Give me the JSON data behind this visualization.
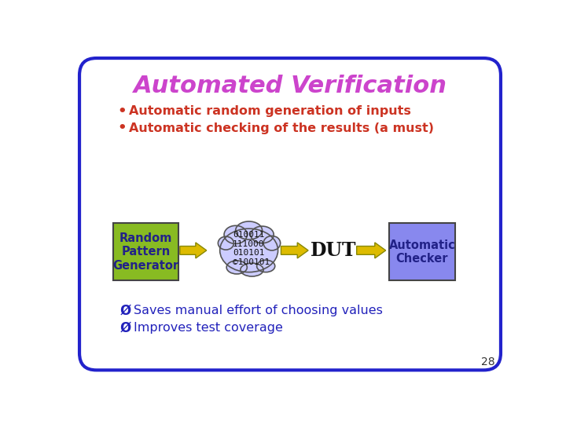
{
  "title": "Automated Verification",
  "title_color": "#cc44cc",
  "bullet_color": "#cc3322",
  "bullet_points": [
    "Automatic random generation of inputs",
    "Automatic checking of the results (a must)"
  ],
  "arrow_color": "#ddbb00",
  "box_rpg_color": "#88bb22",
  "box_rpg_text": "Random\nPattern\nGenerator",
  "box_rpg_text_color": "#222288",
  "box_checker_color": "#8888ee",
  "box_checker_text": "Automatic\nChecker",
  "box_checker_text_color": "#222288",
  "dut_text": "DUT",
  "dut_text_color": "#111111",
  "cloud_text": "010011\n111000\n010101\n©100101",
  "cloud_fill": "#ccccff",
  "cloud_text_color": "#111111",
  "bottom_points": [
    "Saves manual effort of choosing values",
    "Improves test coverage"
  ],
  "bottom_text_color": "#2222bb",
  "border_color": "#2222cc",
  "background_color": "#ffffff",
  "page_number": "28",
  "slide_bg": "#ffffff"
}
